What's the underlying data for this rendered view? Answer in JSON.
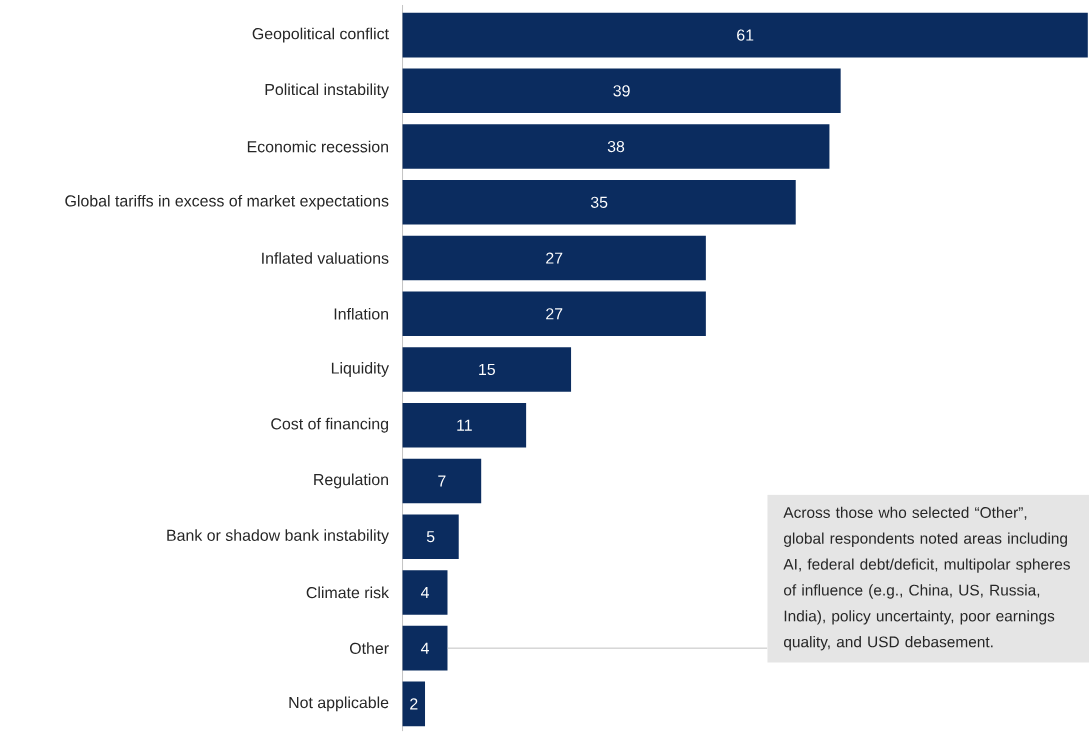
{
  "chart_data": {
    "type": "bar",
    "orientation": "horizontal",
    "categories": [
      "Geopolitical conflict",
      "Political instability",
      "Economic recession",
      "Global tariffs in excess of market expectations",
      "Inflated valuations",
      "Inflation",
      "Liquidity",
      "Cost of financing",
      "Regulation",
      "Bank or shadow bank instability",
      "Climate risk",
      "Other",
      "Not applicable"
    ],
    "values": [
      61,
      39,
      38,
      35,
      27,
      27,
      15,
      11,
      7,
      5,
      4,
      4,
      2
    ],
    "color": "#0b2c5f",
    "data_labels": true,
    "annotations": [
      {
        "text": "Across those who selected “Other”, global respondents noted areas including AI, federal debt/deficit, multipolar spheres of influence (e.g., China, US, Russia, India), policy uncertainty, poor earnings quality, and USD debasement.",
        "x": 4,
        "y": "Other"
      }
    ]
  }
}
